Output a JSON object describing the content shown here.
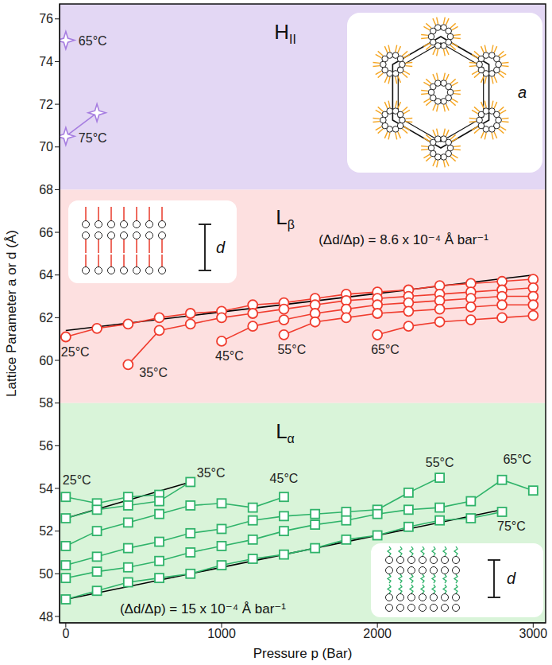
{
  "chart_data": {
    "type": "scatter",
    "x_label": "Pressure p (Bar)",
    "y_label": "Lattice Parameter a or d (Å)",
    "xlim": [
      -40,
      3080
    ],
    "xticks": [
      0,
      1000,
      2000,
      3000
    ],
    "ylim": [
      47.7,
      76.7
    ],
    "yticks": [
      48,
      50,
      52,
      54,
      56,
      58,
      60,
      62,
      64,
      66,
      68,
      70,
      72,
      74,
      76
    ],
    "grid": false,
    "regions": [
      {
        "name": "H",
        "subscript": "II",
        "range": [
          68,
          76.7
        ],
        "color": "#e3d7f4",
        "inset_label": "a",
        "series": [
          {
            "name": "65°C",
            "color": "#a67de0",
            "marker": "star",
            "x": [
              0
            ],
            "values": [
              75.0
            ]
          },
          {
            "name": "75°C",
            "color": "#a67de0",
            "marker": "star",
            "x": [
              0,
              200
            ],
            "values": [
              70.5,
              71.6
            ]
          }
        ]
      },
      {
        "name": "L",
        "subscript": "β",
        "range": [
          58,
          68
        ],
        "color": "#fde0e0",
        "inset_label": "d",
        "series": [
          {
            "name": "25°C",
            "color": "#f03c2e",
            "marker": "circle",
            "x": [
              0,
              200,
              400,
              600,
              800,
              1000,
              1200,
              1400,
              1600,
              1800,
              2000,
              2200,
              2400,
              2600,
              2800,
              3000
            ],
            "values": [
              61.1,
              61.5,
              61.7,
              62.0,
              62.2,
              62.3,
              62.6,
              62.7,
              62.9,
              63.1,
              63.2,
              63.3,
              63.5,
              63.6,
              63.7,
              63.8
            ]
          },
          {
            "name": "35°C",
            "color": "#f03c2e",
            "marker": "circle",
            "x": [
              400,
              600,
              800,
              1000,
              1200,
              1400,
              1600,
              1800,
              2000,
              2200,
              2400,
              2600,
              2800,
              3000
            ],
            "values": [
              59.8,
              61.4,
              61.7,
              62.0,
              62.2,
              62.4,
              62.6,
              62.8,
              62.9,
              63.0,
              63.1,
              63.2,
              63.3,
              63.4
            ]
          },
          {
            "name": "45°C",
            "color": "#f03c2e",
            "marker": "circle",
            "x": [
              1000,
              1200,
              1400,
              1600,
              1800,
              2000,
              2200,
              2400,
              2600,
              2800,
              3000
            ],
            "values": [
              60.9,
              61.6,
              61.9,
              62.2,
              62.4,
              62.6,
              62.7,
              62.8,
              62.9,
              63.0,
              63.0
            ]
          },
          {
            "name": "55°C",
            "color": "#f03c2e",
            "marker": "circle",
            "x": [
              1400,
              1600,
              1800,
              2000,
              2200,
              2400,
              2600,
              2800,
              3000
            ],
            "values": [
              61.2,
              61.8,
              62.0,
              62.2,
              62.3,
              62.4,
              62.5,
              62.6,
              62.6
            ]
          },
          {
            "name": "65°C",
            "color": "#f03c2e",
            "marker": "circle",
            "x": [
              2000,
              2200,
              2400,
              2600,
              2800,
              3000
            ],
            "values": [
              61.2,
              61.6,
              61.8,
              61.9,
              62.0,
              62.1
            ]
          }
        ]
      },
      {
        "name": "L",
        "subscript": "α",
        "range": [
          47.7,
          58
        ],
        "color": "#d9f4d9",
        "inset_label": "d",
        "series": [
          {
            "name": "25°C",
            "color": "#2fb36a",
            "marker": "square",
            "x": [
              0,
              200,
              400,
              600
            ],
            "values": [
              53.6,
              53.3,
              53.6,
              53.7
            ]
          },
          {
            "name": "35°C",
            "color": "#2fb36a",
            "marker": "square",
            "x": [
              0,
              200,
              400,
              600,
              800
            ],
            "values": [
              52.6,
              53.0,
              53.2,
              53.4,
              54.3
            ]
          },
          {
            "name": "45°C",
            "color": "#2fb36a",
            "marker": "square",
            "x": [
              0,
              200,
              400,
              600,
              800,
              1000,
              1200,
              1400
            ],
            "values": [
              51.3,
              52.0,
              52.4,
              52.8,
              53.2,
              53.3,
              53.1,
              53.6
            ]
          },
          {
            "name": "55°C",
            "color": "#2fb36a",
            "marker": "square",
            "x": [
              0,
              200,
              400,
              600,
              800,
              1000,
              1200,
              1400,
              1600,
              1800,
              2000,
              2200,
              2400
            ],
            "values": [
              50.4,
              50.8,
              51.2,
              51.5,
              51.9,
              52.1,
              52.5,
              52.7,
              52.8,
              52.9,
              53.0,
              53.8,
              54.5
            ]
          },
          {
            "name": "65°C",
            "color": "#2fb36a",
            "marker": "square",
            "x": [
              0,
              200,
              400,
              600,
              800,
              1000,
              1200,
              1400,
              1600,
              1800,
              2000,
              2200,
              2400,
              2600,
              2800,
              3000
            ],
            "values": [
              49.8,
              50.1,
              50.3,
              50.6,
              51.0,
              51.3,
              51.6,
              52.0,
              52.3,
              52.5,
              52.8,
              53.0,
              53.1,
              53.4,
              54.4,
              53.9
            ]
          },
          {
            "name": "75°C",
            "color": "#2fb36a",
            "marker": "square",
            "x": [
              0,
              200,
              400,
              600,
              800,
              1000,
              1200,
              1400,
              1600,
              1800,
              2000,
              2200,
              2400,
              2600,
              2800
            ],
            "values": [
              48.8,
              49.2,
              49.6,
              49.8,
              50.0,
              50.4,
              50.7,
              50.9,
              51.2,
              51.6,
              51.8,
              52.2,
              52.5,
              52.6,
              52.9
            ]
          }
        ]
      }
    ],
    "fits": [
      {
        "from": [
          0,
          61.4
        ],
        "to": [
          3000,
          64.0
        ],
        "label": "(Δd/Δp) = 8.6 x 10⁻⁴ Å bar⁻¹"
      },
      {
        "from": [
          0,
          48.8
        ],
        "to": [
          2800,
          53.0
        ],
        "label": "(Δd/Δp) = 15 x 10⁻⁴ Å bar⁻¹"
      },
      {
        "from": [
          0,
          52.6
        ],
        "to": [
          800,
          54.3
        ]
      }
    ]
  }
}
